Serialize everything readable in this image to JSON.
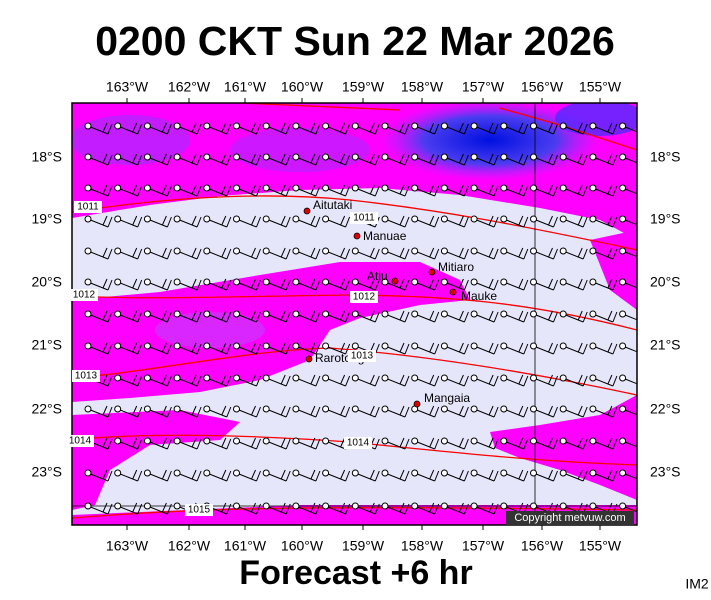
{
  "map": {
    "title": "0200 CKT Sun 22 Mar 2026",
    "lon_labels": [
      "163°W",
      "162°W",
      "161°W",
      "160°W",
      "159°W",
      "158°W",
      "157°W",
      "156°W",
      "155°W"
    ],
    "lat_labels": [
      "18°S",
      "19°S",
      "20°S",
      "21°S",
      "22°S",
      "23°S"
    ],
    "places": [
      "Aitutaki",
      "Manuae",
      "Mitiaro",
      "Atiu",
      "Mauke",
      "Rarotonga",
      "Mangaia"
    ],
    "isobar_labels": [
      "1011",
      "1011",
      "1012",
      "1012",
      "1013",
      "1013",
      "1014",
      "1014",
      "1015"
    ],
    "copyright": "Copyright metvuw.com",
    "footer": "Forecast +6 hr",
    "image_id": "IM2"
  }
}
